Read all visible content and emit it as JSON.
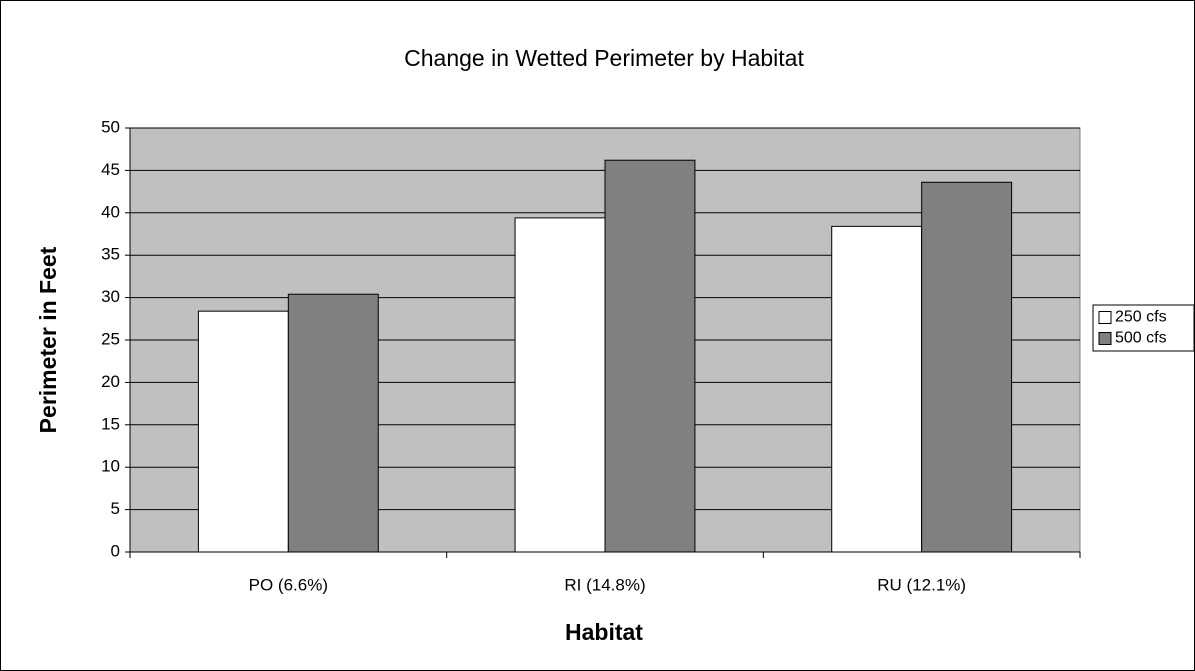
{
  "chart_data": {
    "type": "bar",
    "title": "Change in Wetted Perimeter by Habitat",
    "x_label": "Habitat",
    "y_label": "Perimeter in Feet",
    "categories": [
      "PO (6.6%)",
      "RI (14.8%)",
      "RU (12.1%)"
    ],
    "series": [
      {
        "name": "250 cfs",
        "color": "#ffffff",
        "values": [
          28.4,
          39.4,
          38.4
        ]
      },
      {
        "name": "500 cfs",
        "color": "#808080",
        "values": [
          30.4,
          46.2,
          43.6
        ]
      }
    ],
    "ylim": [
      0,
      50
    ],
    "yticks": [
      0,
      5,
      10,
      15,
      20,
      25,
      30,
      35,
      40,
      45,
      50
    ],
    "grid": true,
    "legend": "right",
    "plot_background": "#c0c0c0"
  }
}
